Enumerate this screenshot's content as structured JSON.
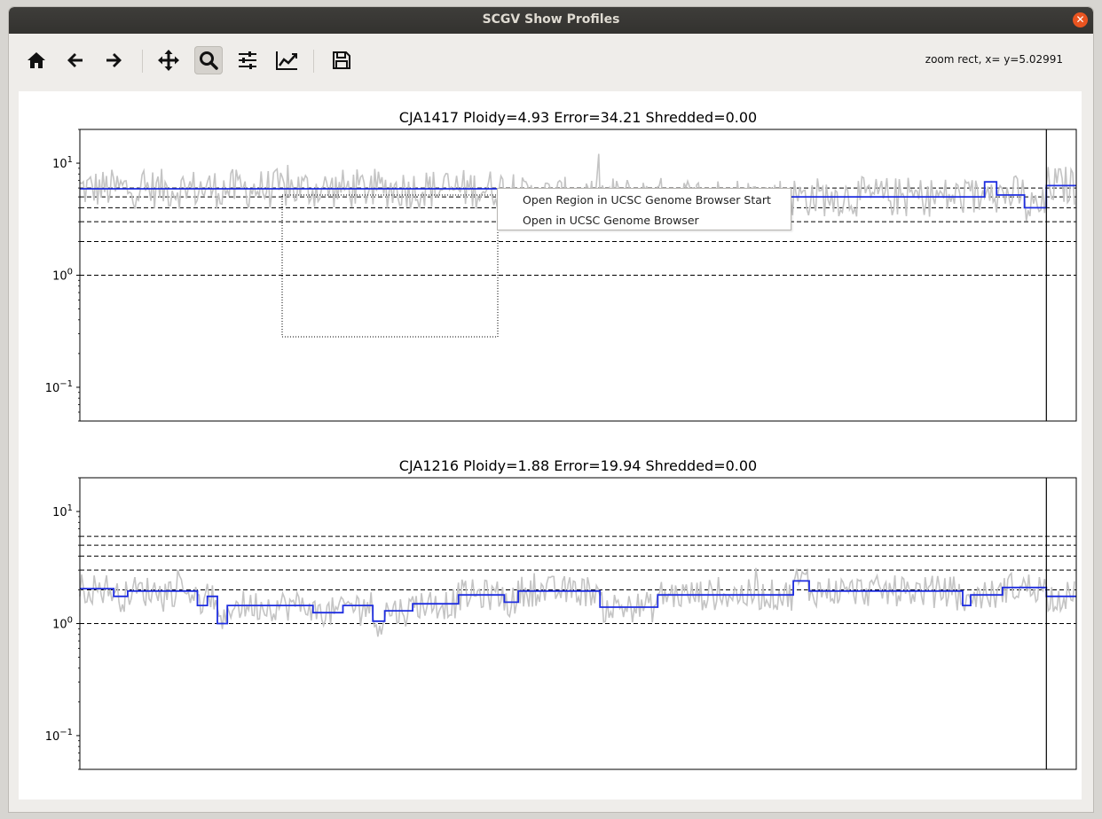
{
  "window": {
    "title": "SCGV Show Profiles"
  },
  "toolbar": {
    "buttons": [
      {
        "icon": "home-icon"
      },
      {
        "icon": "back-arrow-icon"
      },
      {
        "icon": "forward-arrow-icon"
      },
      {
        "icon": "pan-icon"
      },
      {
        "icon": "zoom-icon"
      },
      {
        "icon": "subplots-icon"
      },
      {
        "icon": "axes-icon"
      },
      {
        "icon": "save-icon"
      }
    ],
    "status": "zoom rect, x= y=5.02991"
  },
  "context_menu": {
    "items": [
      "Open Region in UCSC Genome Browser Start",
      "Open in UCSC Genome Browser"
    ]
  },
  "chart_data": [
    {
      "type": "line",
      "title": "CJA1417 Ploidy=4.93 Error=34.21 Shredded=0.00",
      "yscale": "log",
      "ylim": [
        0.05,
        20
      ],
      "yticks": [
        "10^1",
        "10^0",
        "10^-1"
      ],
      "reference_lines": [
        1,
        2,
        3,
        4,
        5,
        6
      ],
      "segments": [
        {
          "x0": 0.0,
          "x1": 0.428,
          "value": 5.9
        },
        {
          "x0": 0.428,
          "x1": 0.908,
          "value": 5.0
        },
        {
          "x0": 0.908,
          "x1": 0.92,
          "value": 6.8
        },
        {
          "x0": 0.92,
          "x1": 0.948,
          "value": 5.2
        },
        {
          "x0": 0.948,
          "x1": 0.97,
          "value": 4.0
        },
        {
          "x0": 0.97,
          "x1": 1.0,
          "value": 6.3
        }
      ],
      "series_colors": {
        "raw": "#c4c4c4",
        "segment": "#1f2ee0"
      },
      "chromosome_boundary": 0.97
    },
    {
      "type": "line",
      "title": "CJA1216 Ploidy=1.88 Error=19.94 Shredded=0.00",
      "yscale": "log",
      "ylim": [
        0.05,
        20
      ],
      "yticks": [
        "10^1",
        "10^0",
        "10^-1"
      ],
      "reference_lines": [
        1,
        2,
        3,
        4,
        5,
        6
      ],
      "segments": [
        {
          "x0": 0.0,
          "x1": 0.034,
          "value": 2.05
        },
        {
          "x0": 0.034,
          "x1": 0.048,
          "value": 1.75
        },
        {
          "x0": 0.048,
          "x1": 0.118,
          "value": 1.95
        },
        {
          "x0": 0.118,
          "x1": 0.128,
          "value": 1.45
        },
        {
          "x0": 0.128,
          "x1": 0.138,
          "value": 1.75
        },
        {
          "x0": 0.138,
          "x1": 0.148,
          "value": 1.0
        },
        {
          "x0": 0.148,
          "x1": 0.234,
          "value": 1.45
        },
        {
          "x0": 0.234,
          "x1": 0.264,
          "value": 1.25
        },
        {
          "x0": 0.264,
          "x1": 0.294,
          "value": 1.45
        },
        {
          "x0": 0.294,
          "x1": 0.306,
          "value": 1.05
        },
        {
          "x0": 0.306,
          "x1": 0.334,
          "value": 1.3
        },
        {
          "x0": 0.334,
          "x1": 0.38,
          "value": 1.5
        },
        {
          "x0": 0.38,
          "x1": 0.426,
          "value": 1.8
        },
        {
          "x0": 0.426,
          "x1": 0.44,
          "value": 1.55
        },
        {
          "x0": 0.44,
          "x1": 0.522,
          "value": 1.95
        },
        {
          "x0": 0.522,
          "x1": 0.58,
          "value": 1.4
        },
        {
          "x0": 0.58,
          "x1": 0.716,
          "value": 1.8
        },
        {
          "x0": 0.716,
          "x1": 0.732,
          "value": 2.4
        },
        {
          "x0": 0.732,
          "x1": 0.886,
          "value": 1.95
        },
        {
          "x0": 0.886,
          "x1": 0.894,
          "value": 1.45
        },
        {
          "x0": 0.894,
          "x1": 0.926,
          "value": 1.8
        },
        {
          "x0": 0.926,
          "x1": 0.97,
          "value": 2.1
        },
        {
          "x0": 0.97,
          "x1": 1.0,
          "value": 1.75
        }
      ],
      "series_colors": {
        "raw": "#c4c4c4",
        "segment": "#1f2ee0"
      },
      "chromosome_boundary": 0.97
    }
  ]
}
